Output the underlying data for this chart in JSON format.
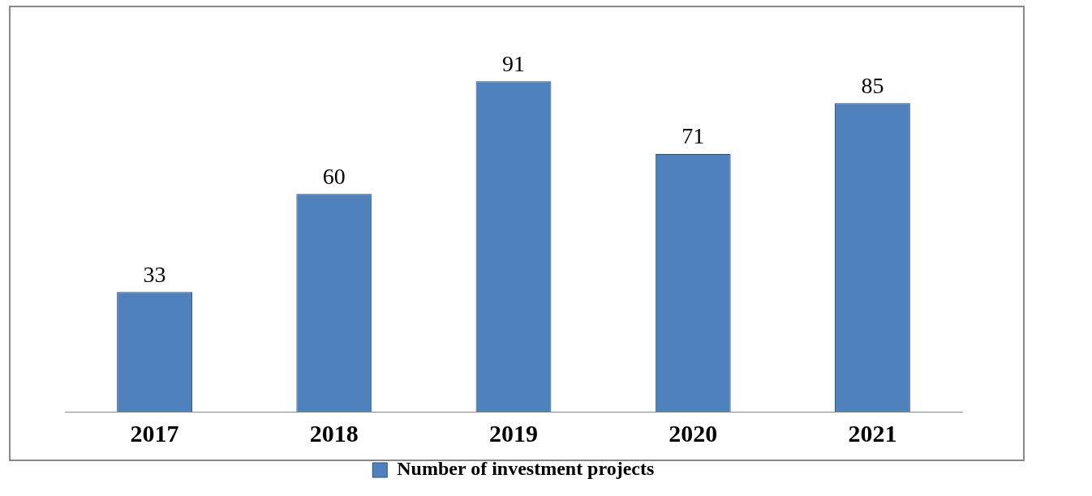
{
  "chart_data": {
    "type": "bar",
    "categories": [
      "2017",
      "2018",
      "2019",
      "2020",
      "2021"
    ],
    "series": [
      {
        "name": "Number of investment projects",
        "color": "#4f81bd",
        "values": [
          33,
          60,
          91,
          71,
          85
        ]
      }
    ],
    "data_labels": true,
    "grid": false,
    "legend": "bottom"
  }
}
